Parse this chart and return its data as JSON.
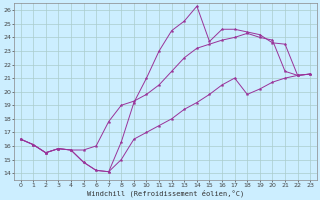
{
  "xlabel": "Windchill (Refroidissement éolien,°C)",
  "xlim": [
    -0.5,
    23.5
  ],
  "ylim": [
    13.5,
    26.5
  ],
  "xticks": [
    0,
    1,
    2,
    3,
    4,
    5,
    6,
    7,
    8,
    9,
    10,
    11,
    12,
    13,
    14,
    15,
    16,
    17,
    18,
    19,
    20,
    21,
    22,
    23
  ],
  "yticks": [
    14,
    15,
    16,
    17,
    18,
    19,
    20,
    21,
    22,
    23,
    24,
    25,
    26
  ],
  "bg_color": "#cceeff",
  "grid_color": "#aacccc",
  "line_color": "#993399",
  "line1_y": [
    16.5,
    16.1,
    15.5,
    15.8,
    15.7,
    14.8,
    14.2,
    14.1,
    16.3,
    19.2,
    21.0,
    23.0,
    24.5,
    25.2,
    26.3,
    23.7,
    24.6,
    24.6,
    24.4,
    24.2,
    23.6,
    23.5,
    21.2,
    21.3
  ],
  "line2_y": [
    16.5,
    16.1,
    15.5,
    15.8,
    15.7,
    15.7,
    16.0,
    17.8,
    19.0,
    19.3,
    19.8,
    20.5,
    21.5,
    22.5,
    23.2,
    23.5,
    23.8,
    24.0,
    24.3,
    24.0,
    23.8,
    21.5,
    21.2,
    21.3
  ],
  "line3_y": [
    16.5,
    16.1,
    15.5,
    15.8,
    15.7,
    14.8,
    14.2,
    14.1,
    15.0,
    16.5,
    17.0,
    17.5,
    18.0,
    18.7,
    19.2,
    19.8,
    20.5,
    21.0,
    19.8,
    20.2,
    20.7,
    21.0,
    21.2,
    21.3
  ]
}
